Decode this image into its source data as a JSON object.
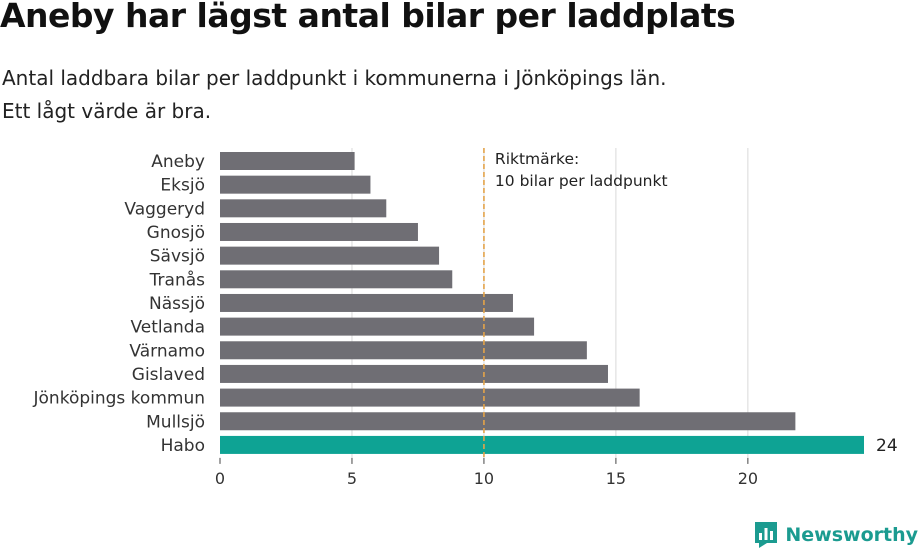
{
  "title": "Aneby har lägst antal bilar per laddplats",
  "subtitle_line1": "Antal laddbara bilar per laddpunkt i kommunerna i Jönköpings län.",
  "subtitle_line2": "Ett lågt värde är bra.",
  "brand": "Newsworthy",
  "colors": {
    "bar": "#6f6e74",
    "highlight": "#0ea394",
    "reference": "#e3a34a",
    "grid": "#d9d9d9"
  },
  "chart_data": {
    "type": "bar",
    "orientation": "horizontal",
    "categories": [
      "Aneby",
      "Eksjö",
      "Vaggeryd",
      "Gnosjö",
      "Sävsjö",
      "Tranås",
      "Nässjö",
      "Vetlanda",
      "Värnamo",
      "Gislaved",
      "Jönköpings kommun",
      "Mullsjö",
      "Habo"
    ],
    "values": [
      5.1,
      5.7,
      6.3,
      7.5,
      8.3,
      8.8,
      11.1,
      11.9,
      13.9,
      14.7,
      15.9,
      21.8,
      24.4
    ],
    "highlight": "Habo",
    "data_label": "24",
    "xlim": [
      0,
      24.4
    ],
    "xticks": [
      0,
      5,
      10,
      15,
      20
    ],
    "grid": true,
    "reference_line": {
      "value": 10,
      "label_line1": "Riktmärke:",
      "label_line2": "10 bilar per laddpunkt"
    }
  }
}
